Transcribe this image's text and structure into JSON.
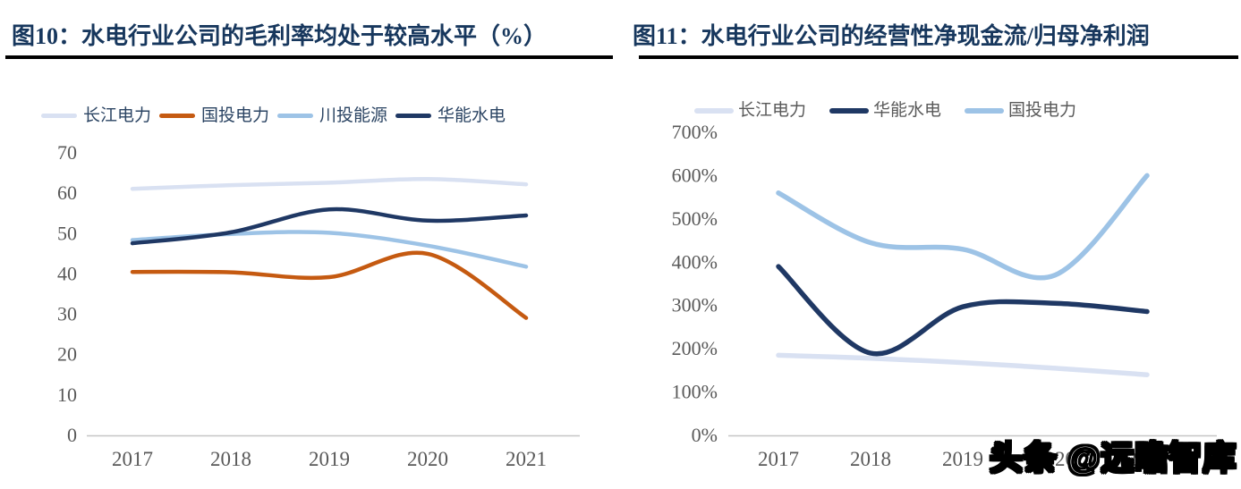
{
  "watermark": {
    "text": "头条 @远瞻智库"
  },
  "chart_data": [
    {
      "type": "line",
      "title": "图10：水电行业公司的毛利率均处于较高水平（%）",
      "categories": [
        "2017",
        "2018",
        "2019",
        "2020",
        "2021"
      ],
      "series": [
        {
          "name": "长江电力",
          "color": "#d9e1f2",
          "values": [
            61.1,
            62.0,
            62.6,
            63.5,
            62.2
          ]
        },
        {
          "name": "国投电力",
          "color": "#c55a11",
          "values": [
            40.5,
            40.4,
            39.2,
            45.0,
            29.1
          ]
        },
        {
          "name": "川投能源",
          "color": "#9dc3e6",
          "values": [
            48.4,
            49.9,
            50.2,
            47.0,
            41.8
          ]
        },
        {
          "name": "华能水电",
          "color": "#1f3864",
          "values": [
            47.6,
            50.3,
            56.0,
            53.2,
            54.5
          ]
        }
      ],
      "xlabel": "",
      "ylabel": "",
      "ylim": [
        0,
        70
      ],
      "ytick_step": 10,
      "ytick_labels": [
        "0",
        "10",
        "20",
        "30",
        "40",
        "50",
        "60",
        "70"
      ],
      "grid": false,
      "legend_position": "top",
      "legend_text_color": "#2b4463",
      "tick_color": "#595959",
      "axis_color": "#c6c6c6"
    },
    {
      "type": "line",
      "title": "图11：水电行业公司的经营性净现金流/归母净利润",
      "categories": [
        "2017",
        "2018",
        "2019",
        "2020",
        "2021"
      ],
      "series": [
        {
          "name": "长江电力",
          "color": "#d9e1f2",
          "values": [
            185,
            178,
            168,
            155,
            140
          ]
        },
        {
          "name": "华能水电",
          "color": "#1f3864",
          "values": [
            390,
            190,
            297,
            305,
            286
          ]
        },
        {
          "name": "国投电力",
          "color": "#9dc3e6",
          "values": [
            560,
            445,
            430,
            370,
            600
          ]
        }
      ],
      "xlabel": "",
      "ylabel": "",
      "ylim": [
        0,
        700
      ],
      "ytick_step": 100,
      "ytick_labels": [
        "0%",
        "100%",
        "200%",
        "300%",
        "400%",
        "500%",
        "600%",
        "700%"
      ],
      "grid": false,
      "legend_position": "top",
      "legend_text_color": "#595959",
      "tick_color": "#595959",
      "axis_color": "#c6c6c6"
    }
  ]
}
